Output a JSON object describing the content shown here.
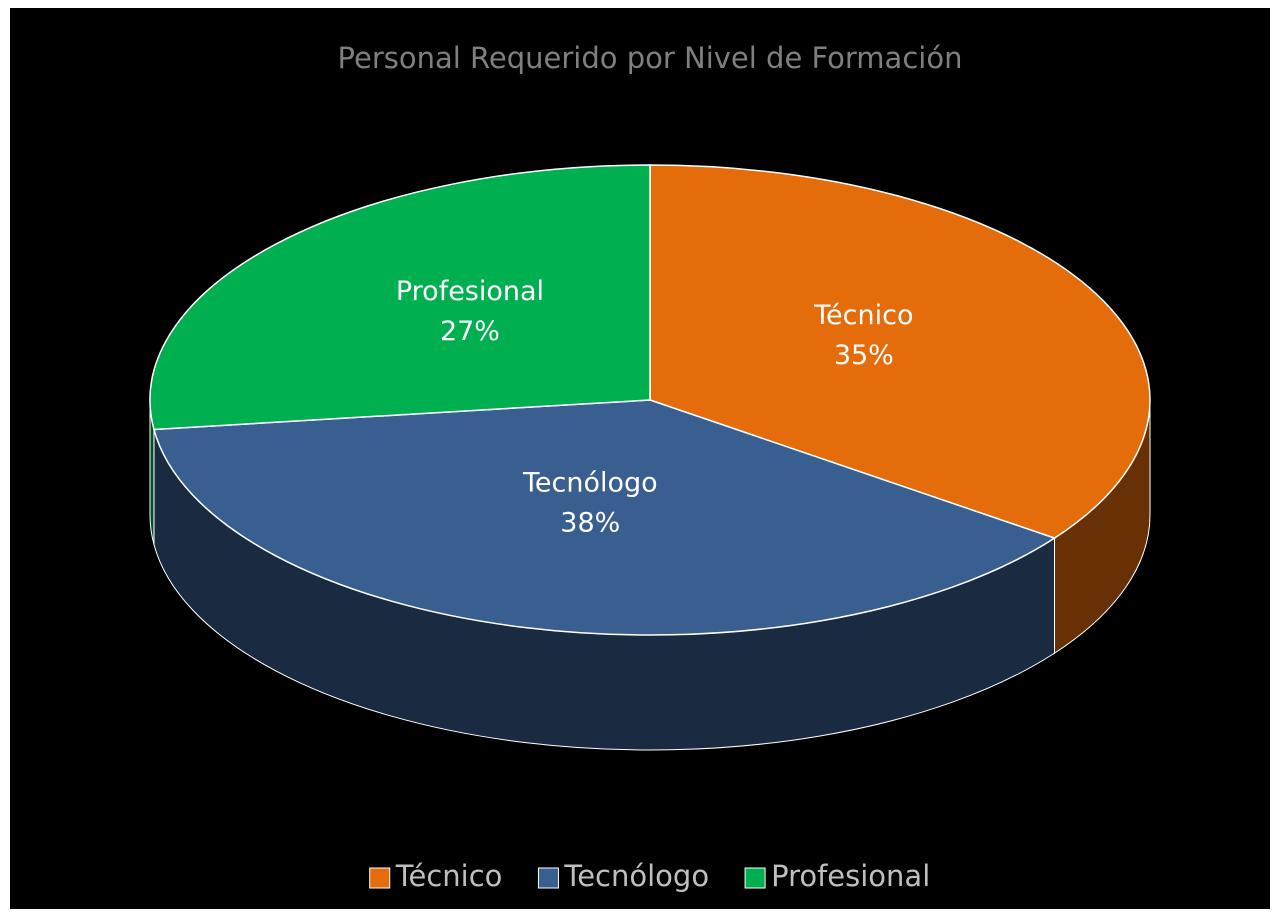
{
  "chart_data": {
    "type": "pie",
    "title": "Personal Requerido por Nivel de Formación",
    "categories": [
      "Técnico",
      "Tecnólogo",
      "Profesional"
    ],
    "values": [
      35,
      38,
      27
    ],
    "value_labels": [
      "35%",
      "38%",
      "27%"
    ],
    "colors": [
      "#e46c0a",
      "#395f91",
      "#00b050"
    ],
    "legend": "bottom"
  }
}
